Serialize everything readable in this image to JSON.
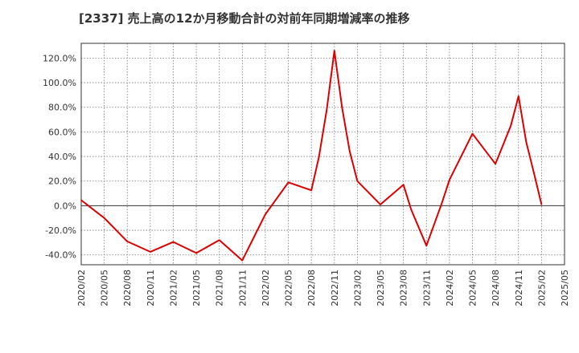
{
  "chart_data": {
    "type": "line",
    "title": "[2337]  売上高の12か月移動合計の対前年同期増減率の推移",
    "xlabel": "",
    "ylabel": "",
    "x_ticks": [
      "2020/02",
      "2020/05",
      "2020/08",
      "2020/11",
      "2021/02",
      "2021/05",
      "2021/08",
      "2021/11",
      "2022/02",
      "2022/05",
      "2022/08",
      "2022/11",
      "2023/02",
      "2023/05",
      "2023/08",
      "2023/11",
      "2024/02",
      "2024/05",
      "2024/08",
      "2024/11",
      "2025/02",
      "2025/05"
    ],
    "y_ticks": [
      120,
      100,
      80,
      60,
      40,
      20,
      0,
      -20,
      -40
    ],
    "y_tick_labels": [
      "120.0%",
      "100.0%",
      "80.0%",
      "60.0%",
      "40.0%",
      "20.0%",
      "0.0%",
      "-20.0%",
      "-40.0%"
    ],
    "ylim": [
      -48,
      132
    ],
    "grid": true,
    "series": [
      {
        "color": "#dd0000",
        "x": [
          "2020/02",
          "2020/05",
          "2020/08",
          "2020/11",
          "2021/02",
          "2021/05",
          "2021/08",
          "2021/11",
          "2022/02",
          "2022/05",
          "2022/08",
          "2022/09",
          "2022/10",
          "2022/11",
          "2022/12",
          "2023/01",
          "2023/02",
          "2023/05",
          "2023/08",
          "2023/09",
          "2023/11",
          "2024/01",
          "2024/02",
          "2024/05",
          "2024/08",
          "2024/10",
          "2024/11",
          "2024/12",
          "2025/01",
          "2025/02"
        ],
        "values": [
          4.5,
          -10,
          -29,
          -37.5,
          -29.5,
          -38.5,
          -28,
          -44.5,
          -7,
          19,
          12.5,
          40,
          78,
          126,
          80,
          44,
          20,
          1,
          17,
          -3,
          -32.5,
          2,
          21,
          58.5,
          34,
          65,
          89,
          52,
          27,
          1
        ]
      }
    ]
  }
}
